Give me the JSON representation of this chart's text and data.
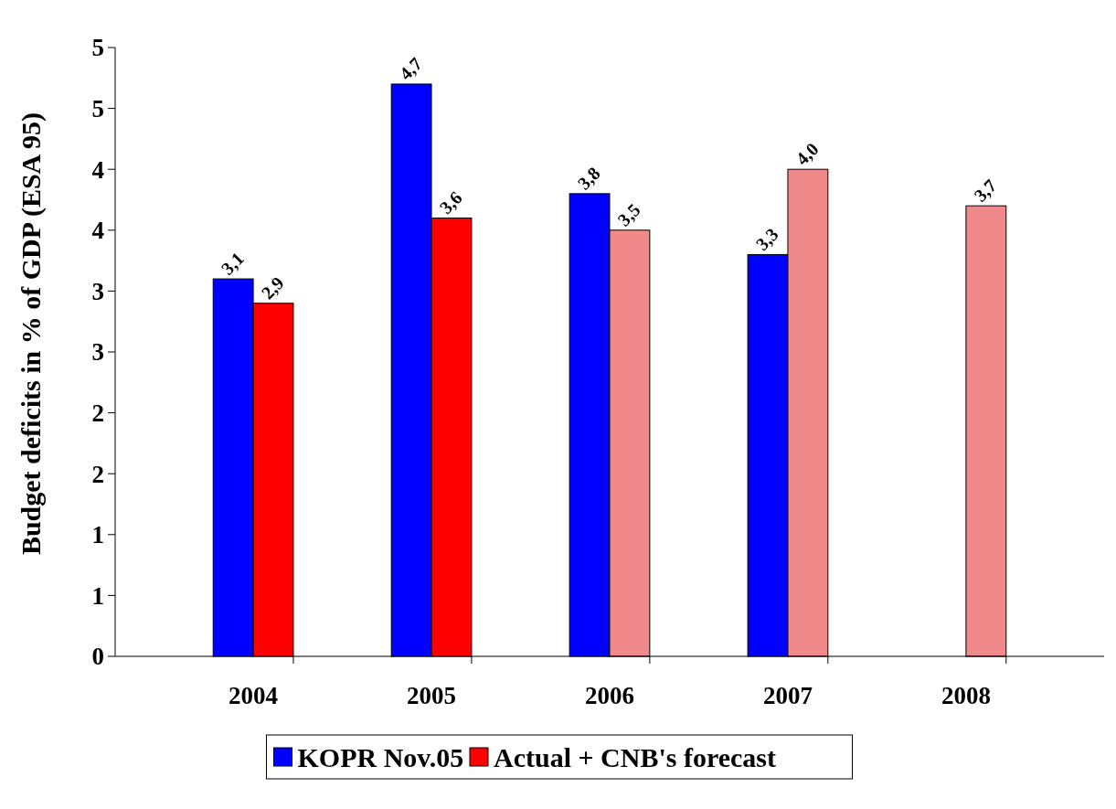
{
  "chart_data": {
    "type": "bar",
    "ylabel": "Budget deficits in % of GDP (ESA 95)",
    "categories": [
      "2004",
      "2005",
      "2006",
      "2007",
      "2008"
    ],
    "series": [
      {
        "name": "KOPR Nov.05",
        "color": "#0000ff",
        "values": [
          3.1,
          4.7,
          3.8,
          3.3,
          null
        ],
        "value_labels": [
          "3,1",
          "4,7",
          "3,8",
          "3,3",
          null
        ]
      },
      {
        "name": "Actual + CNB's forecast",
        "color": "#ff0000",
        "colors": [
          "#ff0000",
          "#ff0000",
          "#f08a8a",
          "#f08a8a",
          "#f08a8a"
        ],
        "values": [
          2.9,
          3.6,
          3.5,
          4.0,
          3.7
        ],
        "value_labels": [
          "2,9",
          "3,6",
          "3,5",
          "4,0",
          "3,7"
        ]
      }
    ],
    "ylim": [
      0,
      5
    ],
    "yticks": [
      0,
      {
        "value": 0.5,
        "label": "1"
      },
      1,
      {
        "value": 1.5,
        "label": "2"
      },
      2,
      {
        "value": 2.5,
        "label": "3"
      },
      3,
      {
        "value": 3.5,
        "label": "4"
      },
      4,
      {
        "value": 4.5,
        "label": "5"
      },
      5
    ],
    "legend": "bottom",
    "grid": false
  }
}
